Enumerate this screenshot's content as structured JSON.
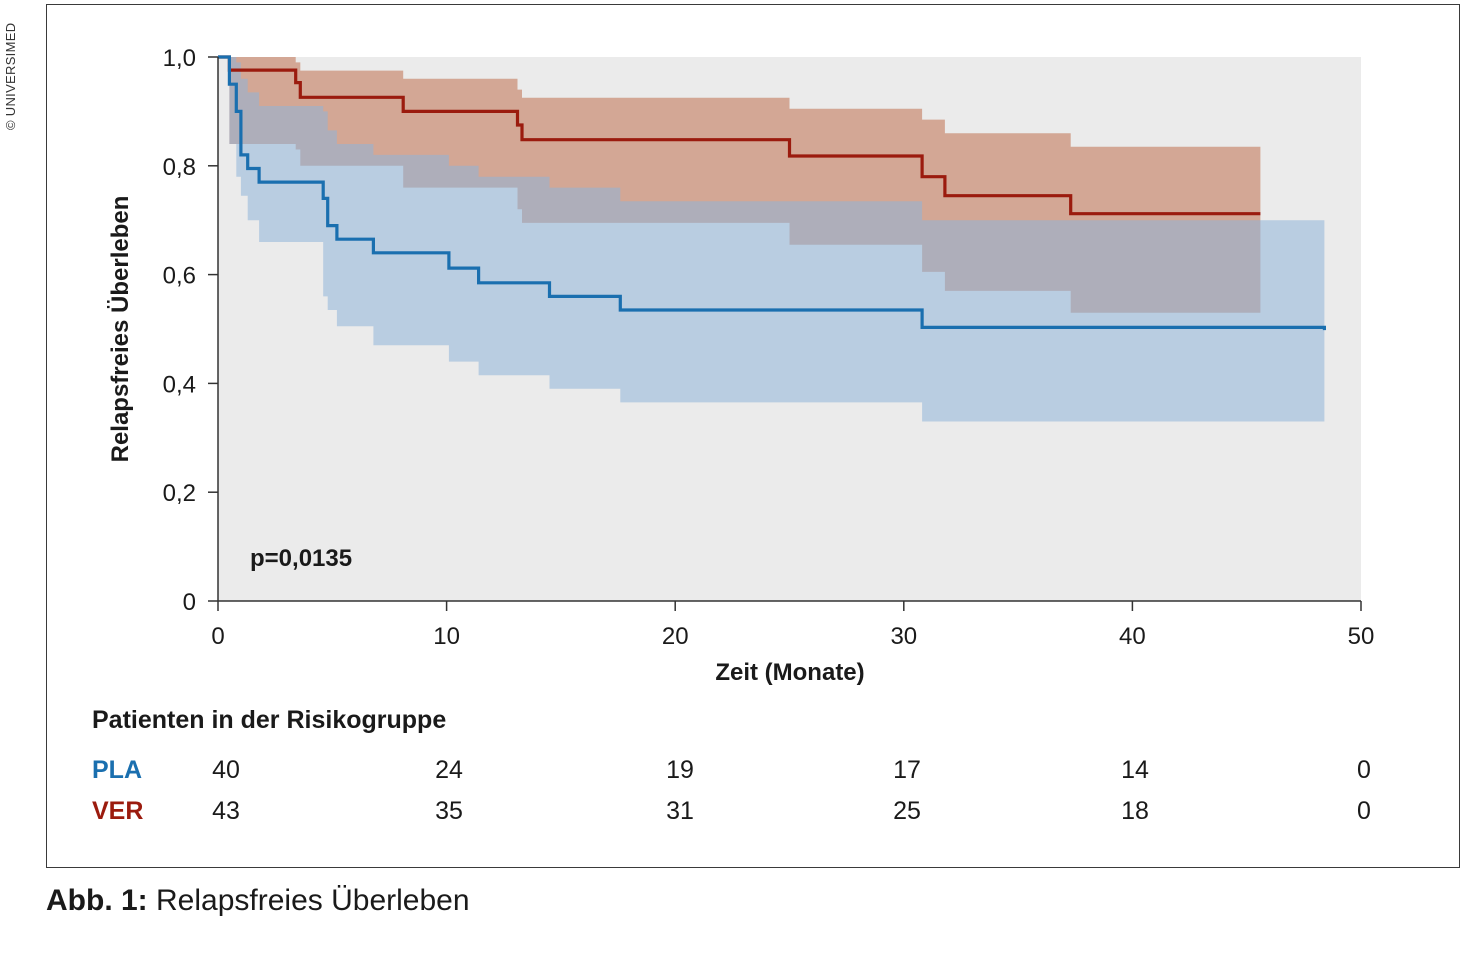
{
  "copyright": "© UNIVERSIMED",
  "caption": {
    "label": "Abb. 1:",
    "text": "Relapsfreies Überleben"
  },
  "annotation": "p=0,0135",
  "risk_table": {
    "title": "Patienten in der Risikogruppe",
    "groups": [
      {
        "name": "PLA",
        "color": "#1a6faf",
        "counts": [
          "40",
          "24",
          "19",
          "17",
          "14",
          "0"
        ]
      },
      {
        "name": "VER",
        "color": "#9b1b0e",
        "counts": [
          "43",
          "35",
          "31",
          "25",
          "18",
          "0"
        ]
      }
    ]
  },
  "chart_data": {
    "type": "line",
    "subtype": "kaplan-meier step curve with confidence bands",
    "xlabel": "Zeit (Monate)",
    "ylabel": "Relapsfreies Überleben",
    "xlim": [
      0,
      50
    ],
    "ylim": [
      0,
      1.0
    ],
    "x_ticks": [
      "0",
      "10",
      "20",
      "30",
      "40",
      "50"
    ],
    "y_ticks": [
      "0",
      "0,2",
      "0,4",
      "0,6",
      "0,8",
      "1,0"
    ],
    "background": "#ebebeb",
    "series": [
      {
        "name": "VER",
        "color": "#9b1b0e",
        "band_color": "#c0704f",
        "steps": [
          [
            0,
            1.0
          ],
          [
            0.5,
            0.976
          ],
          [
            3.4,
            0.953
          ],
          [
            3.6,
            0.926
          ],
          [
            8.1,
            0.9
          ],
          [
            13.1,
            0.875
          ],
          [
            13.3,
            0.848
          ],
          [
            25.0,
            0.818
          ],
          [
            30.8,
            0.78
          ],
          [
            31.8,
            0.745
          ],
          [
            37.3,
            0.712
          ],
          [
            45.6,
            0.712
          ]
        ],
        "band": [
          [
            0,
            1.0,
            1.0
          ],
          [
            0.5,
            0.84,
            1.0
          ],
          [
            3.4,
            0.83,
            0.99
          ],
          [
            3.6,
            0.8,
            0.975
          ],
          [
            8.1,
            0.76,
            0.96
          ],
          [
            13.1,
            0.72,
            0.94
          ],
          [
            13.3,
            0.695,
            0.925
          ],
          [
            25.0,
            0.655,
            0.905
          ],
          [
            30.8,
            0.605,
            0.885
          ],
          [
            31.8,
            0.57,
            0.86
          ],
          [
            37.3,
            0.53,
            0.835
          ],
          [
            45.6,
            0.53,
            0.835
          ]
        ]
      },
      {
        "name": "PLA",
        "color": "#1a6faf",
        "band_color": "#8fb4d8",
        "steps": [
          [
            0,
            1.0
          ],
          [
            0.5,
            0.95
          ],
          [
            0.8,
            0.9
          ],
          [
            1.0,
            0.82
          ],
          [
            1.3,
            0.795
          ],
          [
            1.8,
            0.77
          ],
          [
            4.6,
            0.74
          ],
          [
            4.8,
            0.69
          ],
          [
            5.2,
            0.665
          ],
          [
            6.8,
            0.64
          ],
          [
            10.1,
            0.612
          ],
          [
            11.4,
            0.585
          ],
          [
            14.5,
            0.56
          ],
          [
            17.6,
            0.535
          ],
          [
            30.8,
            0.503
          ],
          [
            48.4,
            0.498
          ]
        ],
        "band": [
          [
            0,
            1.0,
            1.0
          ],
          [
            0.5,
            0.84,
            1.0
          ],
          [
            0.8,
            0.78,
            0.99
          ],
          [
            1.0,
            0.745,
            0.96
          ],
          [
            1.3,
            0.7,
            0.935
          ],
          [
            1.8,
            0.66,
            0.91
          ],
          [
            4.6,
            0.56,
            0.9
          ],
          [
            4.8,
            0.535,
            0.865
          ],
          [
            5.2,
            0.505,
            0.84
          ],
          [
            6.8,
            0.47,
            0.82
          ],
          [
            10.1,
            0.44,
            0.8
          ],
          [
            11.4,
            0.415,
            0.78
          ],
          [
            14.5,
            0.39,
            0.76
          ],
          [
            17.6,
            0.365,
            0.735
          ],
          [
            30.8,
            0.33,
            0.7
          ],
          [
            48.4,
            0.335,
            0.645
          ]
        ]
      }
    ]
  }
}
